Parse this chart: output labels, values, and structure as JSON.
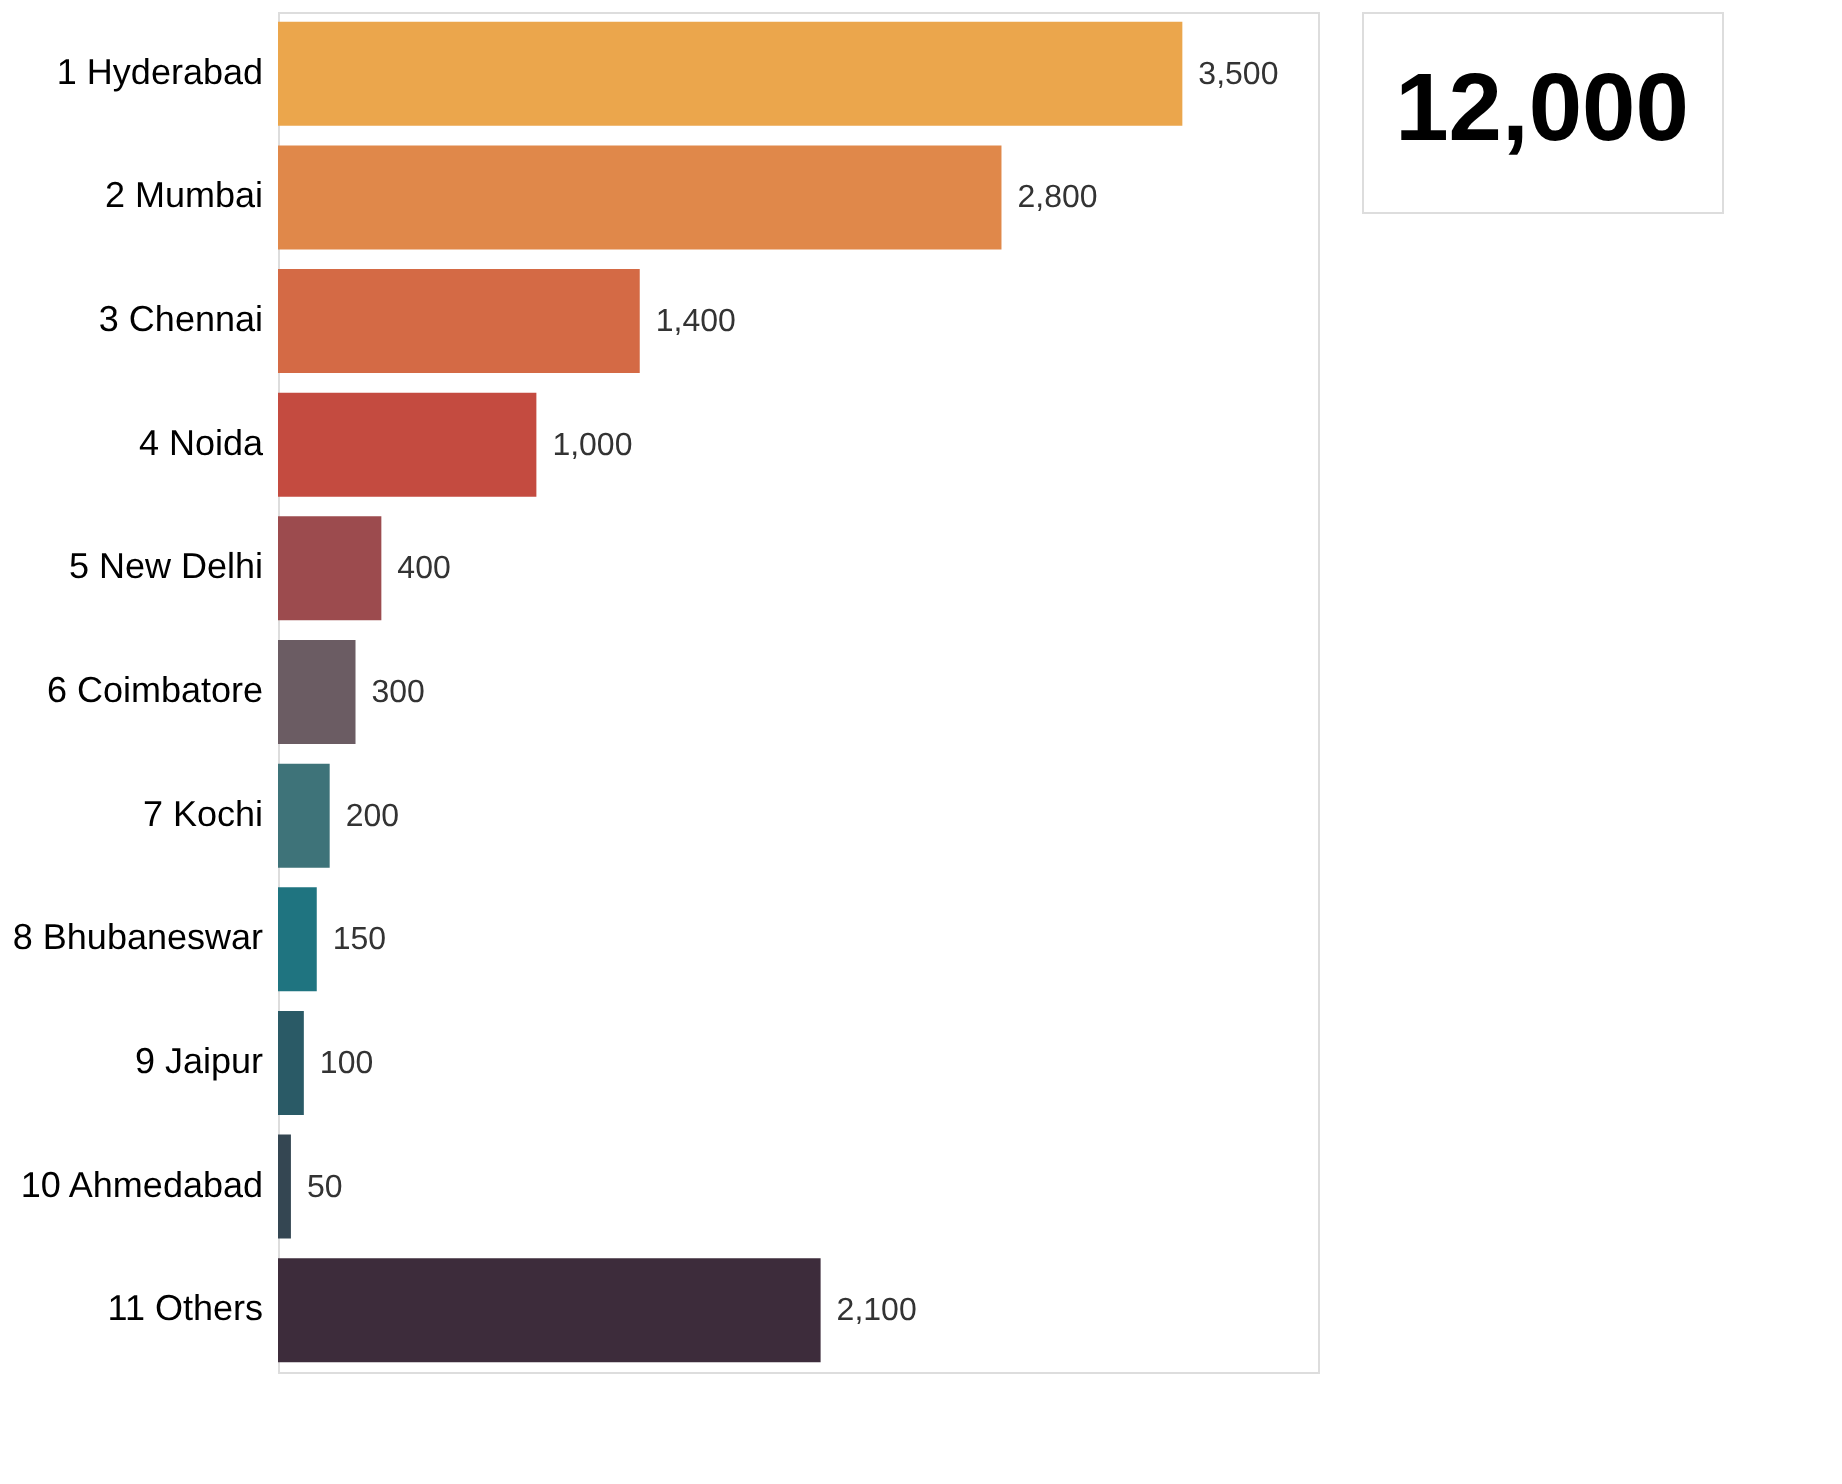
{
  "chart_data": {
    "type": "bar",
    "orientation": "horizontal",
    "categories": [
      "1 Hyderabad",
      "2 Mumbai",
      "3 Chennai",
      "4 Noida",
      "5 New Delhi",
      "6 Coimbatore",
      "7 Kochi",
      "8 Bhubaneswar",
      "9 Jaipur",
      "10 Ahmedabad",
      "11 Others"
    ],
    "values": [
      3500,
      2800,
      1400,
      1000,
      400,
      300,
      200,
      150,
      100,
      50,
      2100
    ],
    "colors": [
      "#eba64c",
      "#e0884a",
      "#d46a45",
      "#c44b40",
      "#9c4b4e",
      "#6b5c63",
      "#3e7379",
      "#1f7480",
      "#2a5a66",
      "#344652",
      "#3d2c3b"
    ],
    "data_labels": true,
    "value_labels": [
      "3,500",
      "2,800",
      "1,400",
      "1,000",
      "400",
      "300",
      "200",
      "150",
      "100",
      "50",
      "2,100"
    ],
    "annotations": [
      "12,000"
    ]
  }
}
